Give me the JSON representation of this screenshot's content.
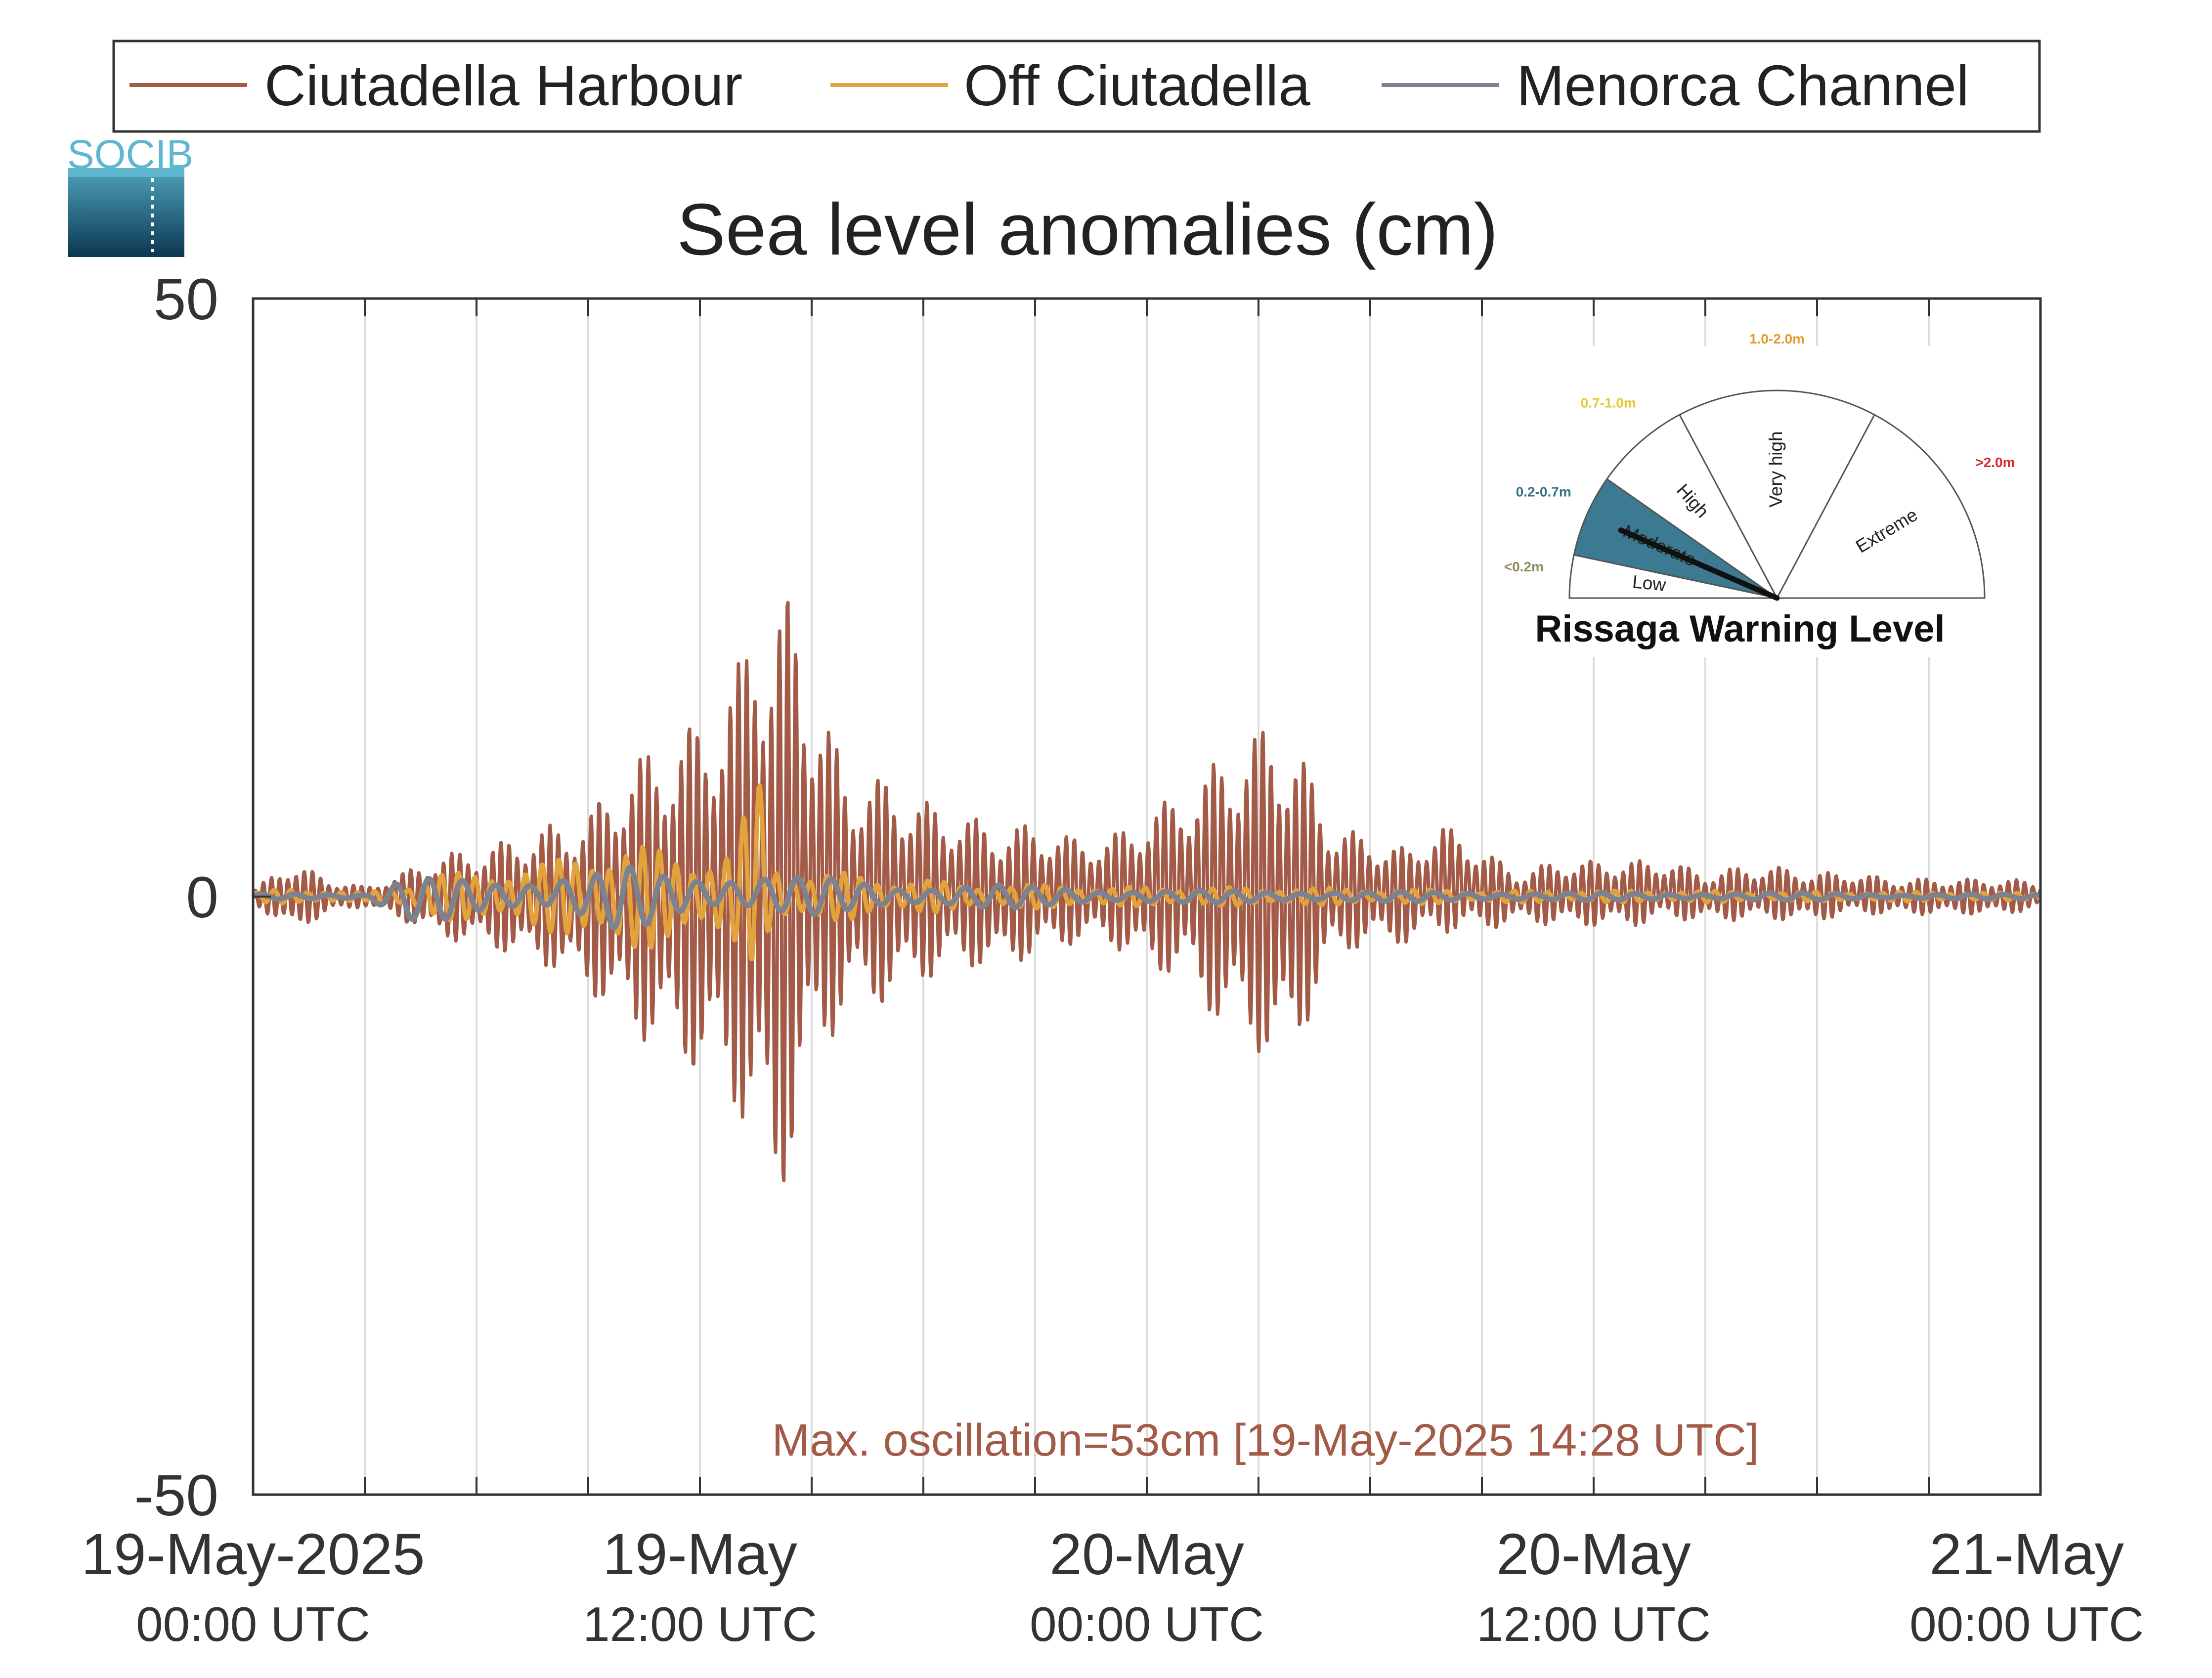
{
  "logo": {
    "text": "SOCIB",
    "colors": {
      "top": "#5fb6cf",
      "gradient_top": "#4a9db5",
      "gradient_bottom": "#0d3651"
    }
  },
  "legend": {
    "entries": [
      {
        "label": "Ciutadella Harbour",
        "color": "#a35a47"
      },
      {
        "label": "Off Ciutadella",
        "color": "#e3a33c"
      },
      {
        "label": "Menorca Channel",
        "color": "#7d8291"
      }
    ]
  },
  "gauge": {
    "title": "Rissaga Warning Level",
    "needle_level": "Moderate",
    "sectors": [
      {
        "name": "Low",
        "range": "<0.2m",
        "range_color": "#8f8a5a",
        "active": false
      },
      {
        "name": "Moderate",
        "range": "0.2-0.7m",
        "range_color": "#3a7088",
        "active": true
      },
      {
        "name": "High",
        "range": "0.7-1.0m",
        "range_color": "#e6c92a",
        "active": false
      },
      {
        "name": "Very high",
        "range": "1.0-2.0m",
        "range_color": "#e59a2a",
        "active": false
      },
      {
        "name": "Extreme",
        "range": ">2.0m",
        "range_color": "#d8262c",
        "active": false
      }
    ],
    "active_color": "#3b7a91"
  },
  "chart_data": {
    "type": "line",
    "title": "Sea level anomalies (cm)",
    "xlabel": "",
    "ylabel": "",
    "x_unit": "hours from 19-May-2025 00:00 UTC",
    "xlim": [
      0,
      48
    ],
    "ylim": [
      -50,
      50
    ],
    "yticks": [
      -50,
      0,
      50
    ],
    "ytick_labels": [
      "-50",
      "0",
      "50"
    ],
    "xticks": [
      0,
      12,
      24,
      36,
      48
    ],
    "xtick_labels": [
      {
        "main": "19-May-2025",
        "sub": "00:00 UTC"
      },
      {
        "main": "19-May",
        "sub": "12:00 UTC"
      },
      {
        "main": "20-May",
        "sub": "00:00 UTC"
      },
      {
        "main": "20-May",
        "sub": "12:00 UTC"
      },
      {
        "main": "21-May",
        "sub": "00:00 UTC"
      }
    ],
    "grid_x_step_hours": 3,
    "grid": true,
    "legend_position": "top",
    "annotation": {
      "text": "Max. oscillation=53cm [19-May-2025 14:28 UTC]",
      "color": "#a35a47"
    },
    "series": [
      {
        "name": "Ciutadella Harbour",
        "color": "#a35a47",
        "x": [
          0,
          1,
          2,
          3,
          4,
          5,
          6,
          7,
          8,
          9,
          10,
          11,
          12,
          13,
          13.5,
          14,
          14.5,
          15,
          16,
          17,
          18,
          19,
          20,
          21,
          22,
          23,
          23.5,
          24,
          25,
          25.5,
          26,
          27,
          27.5,
          28,
          29,
          30,
          31,
          32,
          33,
          34,
          35,
          36,
          37,
          38,
          39,
          40,
          41,
          42,
          43,
          44,
          45,
          46,
          47,
          48
        ],
        "y": [
          0.5,
          3,
          1.5,
          0.8,
          2,
          3.5,
          4,
          5,
          6,
          7,
          11,
          13,
          15,
          19,
          26,
          24,
          26,
          18,
          10,
          10,
          8,
          7,
          6,
          6,
          5,
          5,
          6,
          7,
          9,
          10,
          12,
          14,
          15,
          13,
          6,
          5,
          4,
          6,
          4,
          2,
          3,
          3,
          3,
          3,
          2,
          2.5,
          2.5,
          2,
          2,
          1.5,
          1.5,
          1.5,
          1.5,
          1.2
        ],
        "y_min": [
          -0.5,
          -3,
          -1.5,
          -0.8,
          -2,
          -3.5,
          -4,
          -5,
          -6,
          -8,
          -11,
          -13,
          -15,
          -18,
          -22,
          -27,
          -22,
          -15,
          -9,
          -9,
          -7,
          -6,
          -6,
          -5,
          -4,
          -4,
          -5,
          -6,
          -7,
          -9,
          -11,
          -13,
          -15,
          -13,
          -5,
          -4,
          -4,
          -3,
          -3,
          -2,
          -2.5,
          -2.5,
          -2.5,
          -2,
          -2,
          -2,
          -2,
          -2,
          -1.5,
          -1.5,
          -1.5,
          -1.5,
          -1.5,
          -1
        ]
      },
      {
        "name": "Off Ciutadella",
        "color": "#e3a33c",
        "x": [
          0,
          1,
          2,
          3,
          4,
          5,
          6,
          7,
          8,
          9,
          10,
          11,
          12,
          13,
          13.5,
          14,
          15,
          16,
          17,
          18,
          19,
          20,
          21,
          22,
          23,
          24,
          25,
          26,
          27,
          28,
          29,
          30,
          31,
          32,
          33,
          34,
          35,
          36,
          37,
          38,
          39,
          40,
          41,
          42,
          43,
          44,
          45,
          46,
          47,
          48
        ],
        "y": [
          0.3,
          0.8,
          0.5,
          0.3,
          1,
          2,
          2,
          2.5,
          3,
          4,
          4.5,
          4,
          3.5,
          4,
          12,
          3,
          2,
          2,
          1.5,
          1.5,
          1,
          1,
          1,
          1,
          0.8,
          0.8,
          0.8,
          0.8,
          0.7,
          0.8,
          0.7,
          0.6,
          0.6,
          0.6,
          0.5,
          0.5,
          0.5,
          0.5,
          0.5,
          0.5,
          0.5,
          0.4,
          0.4,
          0.4,
          0.4,
          0.4,
          0.4,
          0.4,
          0.3,
          0.3
        ],
        "y_min": [
          -0.3,
          -0.8,
          -0.5,
          -0.3,
          -1,
          -2,
          -2,
          -2.5,
          -3,
          -4,
          -5,
          -4,
          -3.5,
          -4,
          -6,
          -3,
          -2,
          -2,
          -1.5,
          -1.5,
          -1,
          -1,
          -1,
          -1,
          -0.8,
          -0.8,
          -0.8,
          -0.8,
          -0.7,
          -0.8,
          -0.7,
          -0.6,
          -0.6,
          -0.6,
          -0.5,
          -0.5,
          -0.5,
          -0.5,
          -0.5,
          -0.5,
          -0.5,
          -0.4,
          -0.4,
          -0.4,
          -0.4,
          -0.4,
          -0.4,
          -0.4,
          -0.3,
          -0.3
        ]
      },
      {
        "name": "Menorca Channel",
        "color": "#7d8291",
        "x": [
          0,
          1,
          2,
          3,
          4,
          5,
          6,
          7,
          8,
          9,
          10,
          11,
          12,
          13,
          14,
          15,
          16,
          17,
          18,
          19,
          20,
          21,
          22,
          23,
          24,
          25,
          26,
          27,
          28,
          29,
          30,
          31,
          32,
          33,
          34,
          35,
          36,
          37,
          38,
          39,
          40,
          41,
          42,
          43,
          44,
          45,
          46,
          47,
          48
        ],
        "y": [
          0.2,
          0.3,
          0.3,
          0.2,
          1.5,
          1.5,
          1.5,
          1.5,
          2,
          2,
          2.5,
          2,
          2,
          2,
          2,
          1.5,
          1.5,
          1,
          1,
          1,
          1,
          0.8,
          0.8,
          0.6,
          0.6,
          0.5,
          0.5,
          0.5,
          0.5,
          0.5,
          0.4,
          0.4,
          0.4,
          0.4,
          0.4,
          0.3,
          0.3,
          0.3,
          0.3,
          0.3,
          0.3,
          0.3,
          0.3,
          0.3,
          0.2,
          0.2,
          0.2,
          0.2,
          0.2
        ],
        "y_min": [
          -0.2,
          -0.3,
          -0.3,
          -0.2,
          -2,
          -2,
          -1.5,
          -1.5,
          -1.5,
          -2,
          -3,
          -2,
          -1.5,
          -1.5,
          -1.5,
          -1.5,
          -1.2,
          -1,
          -1,
          -1,
          -1,
          -0.8,
          -0.8,
          -0.6,
          -0.6,
          -0.5,
          -0.5,
          -0.5,
          -0.5,
          -0.5,
          -0.4,
          -0.4,
          -0.4,
          -0.4,
          -0.4,
          -0.3,
          -0.3,
          -0.3,
          -0.3,
          -0.3,
          -0.3,
          -0.3,
          -0.3,
          -0.3,
          -0.2,
          -0.2,
          -0.2,
          -0.2,
          -0.2
        ]
      }
    ]
  }
}
